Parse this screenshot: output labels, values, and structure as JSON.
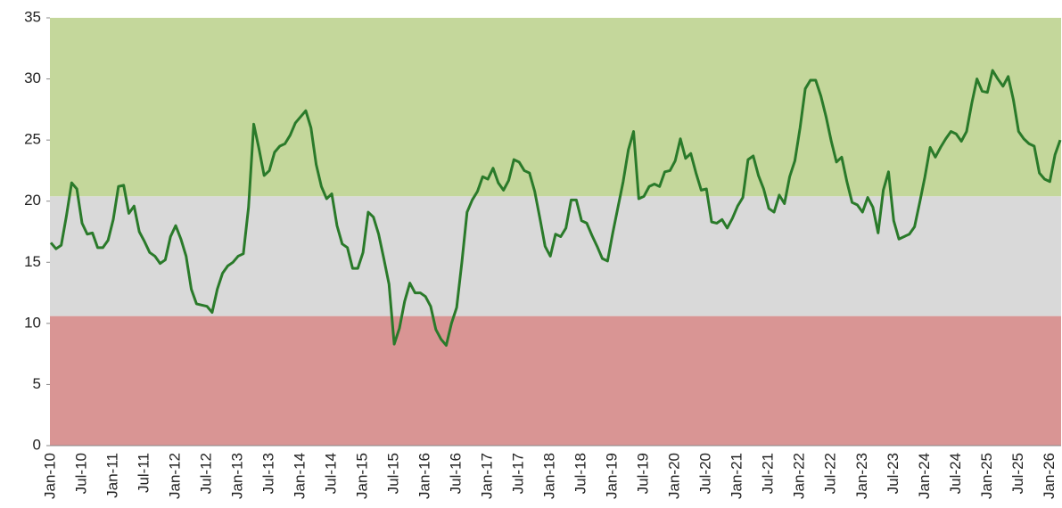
{
  "chart_data": {
    "type": "line",
    "categories": [
      "Jan-10",
      null,
      null,
      null,
      null,
      null,
      "Jul-10",
      null,
      null,
      null,
      null,
      null,
      "Jan-11",
      null,
      null,
      null,
      null,
      null,
      "Jul-11",
      null,
      null,
      null,
      null,
      null,
      "Jan-12",
      null,
      null,
      null,
      null,
      null,
      "Jul-12",
      null,
      null,
      null,
      null,
      null,
      "Jan-13",
      null,
      null,
      null,
      null,
      null,
      "Jul-13",
      null,
      null,
      null,
      null,
      null,
      "Jan-14",
      null,
      null,
      null,
      null,
      null,
      "Jul-14",
      null,
      null,
      null,
      null,
      null,
      "Jan-15",
      null,
      null,
      null,
      null,
      null,
      "Jul-15",
      null,
      null,
      null,
      null,
      null,
      "Jan-16",
      null,
      null,
      null,
      null,
      null,
      "Jul-16",
      null,
      null,
      null,
      null,
      null,
      "Jan-17",
      null,
      null,
      null,
      null,
      null,
      "Jul-17",
      null,
      null,
      null,
      null,
      null,
      "Jan-18",
      null,
      null,
      null,
      null,
      null,
      "Jul-18",
      null,
      null,
      null,
      null,
      null,
      "Jan-19",
      null,
      null,
      null,
      null,
      null,
      "Jul-19",
      null,
      null,
      null,
      null,
      null,
      "Jan-20",
      null,
      null,
      null,
      null,
      null,
      "Jul-20",
      null,
      null,
      null,
      null,
      null,
      "Jan-21",
      null,
      null,
      null,
      null,
      null,
      "Jul-21",
      null,
      null,
      null,
      null,
      null,
      "Jan-22",
      null,
      null,
      null,
      null,
      null,
      "Jul-22",
      null,
      null,
      null,
      null,
      null,
      "Jan-23",
      null,
      null,
      null,
      null,
      null,
      "Jul-23",
      null,
      null,
      null,
      null,
      null,
      "Jan-24",
      null,
      null,
      null,
      null,
      null,
      "Jul-24",
      null,
      null,
      null,
      null,
      null,
      "Jan-25",
      null,
      null,
      null,
      null,
      null,
      "Jul-25",
      null,
      null,
      null,
      null,
      null,
      "Jan-26",
      null,
      null
    ],
    "series": [
      {
        "color": "#2a7a2a",
        "values": [
          16.6,
          16.1,
          16.4,
          18.8,
          21.5,
          21.0,
          18.2,
          17.3,
          17.4,
          16.2,
          16.2,
          16.8,
          18.5,
          21.2,
          21.3,
          19.0,
          19.6,
          17.5,
          16.7,
          15.8,
          15.5,
          14.9,
          15.2,
          17.1,
          18.0,
          16.9,
          15.5,
          12.8,
          11.6,
          11.5,
          11.4,
          10.9,
          12.8,
          14.1,
          14.7,
          15.0,
          15.5,
          15.7,
          19.5,
          26.3,
          24.3,
          22.1,
          22.5,
          24.0,
          24.5,
          24.7,
          25.4,
          26.4,
          26.9,
          27.4,
          26.0,
          23.0,
          21.2,
          20.2,
          20.6,
          18.0,
          16.5,
          16.2,
          14.5,
          14.5,
          15.8,
          19.1,
          18.7,
          17.3,
          15.3,
          13.2,
          8.3,
          9.6,
          11.8,
          13.3,
          12.5,
          12.5,
          12.2,
          11.4,
          9.5,
          8.7,
          8.2,
          10.0,
          11.3,
          15.0,
          19.1,
          20.1,
          20.8,
          22.0,
          21.8,
          22.7,
          21.5,
          20.9,
          21.7,
          23.4,
          23.2,
          22.5,
          22.3,
          20.8,
          18.6,
          16.3,
          15.5,
          17.3,
          17.1,
          17.8,
          20.1,
          20.1,
          18.4,
          18.2,
          17.2,
          16.3,
          15.3,
          15.1,
          17.4,
          19.5,
          21.6,
          24.2,
          25.7,
          20.2,
          20.4,
          21.2,
          21.4,
          21.2,
          22.4,
          22.5,
          23.3,
          25.1,
          23.5,
          23.9,
          22.3,
          20.9,
          21.0,
          18.3,
          18.2,
          18.5,
          17.8,
          18.6,
          19.6,
          20.3,
          23.4,
          23.7,
          22.1,
          21.0,
          19.4,
          19.1,
          20.5,
          19.8,
          22.0,
          23.3,
          26.0,
          29.2,
          29.9,
          29.9,
          28.6,
          26.9,
          24.9,
          23.2,
          23.6,
          21.6,
          19.9,
          19.7,
          19.1,
          20.3,
          19.5,
          17.4,
          20.9,
          22.4,
          18.4,
          16.9,
          17.1,
          17.3,
          17.9,
          19.9,
          22.0,
          24.4,
          23.6,
          24.4,
          25.1,
          25.7,
          25.5,
          24.9,
          25.7,
          28.0,
          30.0,
          29.0,
          28.9,
          30.7,
          30.0,
          29.4,
          30.2,
          28.3,
          25.7,
          25.1,
          24.7,
          24.5,
          22.3,
          21.8,
          21.6,
          23.8,
          25.0
        ]
      }
    ],
    "bands": [
      {
        "from": 0,
        "to": 10.6,
        "color": "#d99594"
      },
      {
        "from": 10.6,
        "to": 20.4,
        "color": "#d9d9d9"
      },
      {
        "from": 20.4,
        "to": 35,
        "color": "#c4d79b"
      }
    ],
    "ylim": [
      0,
      35
    ],
    "yticks": [
      0,
      5,
      10,
      15,
      20,
      25,
      30,
      35
    ]
  }
}
